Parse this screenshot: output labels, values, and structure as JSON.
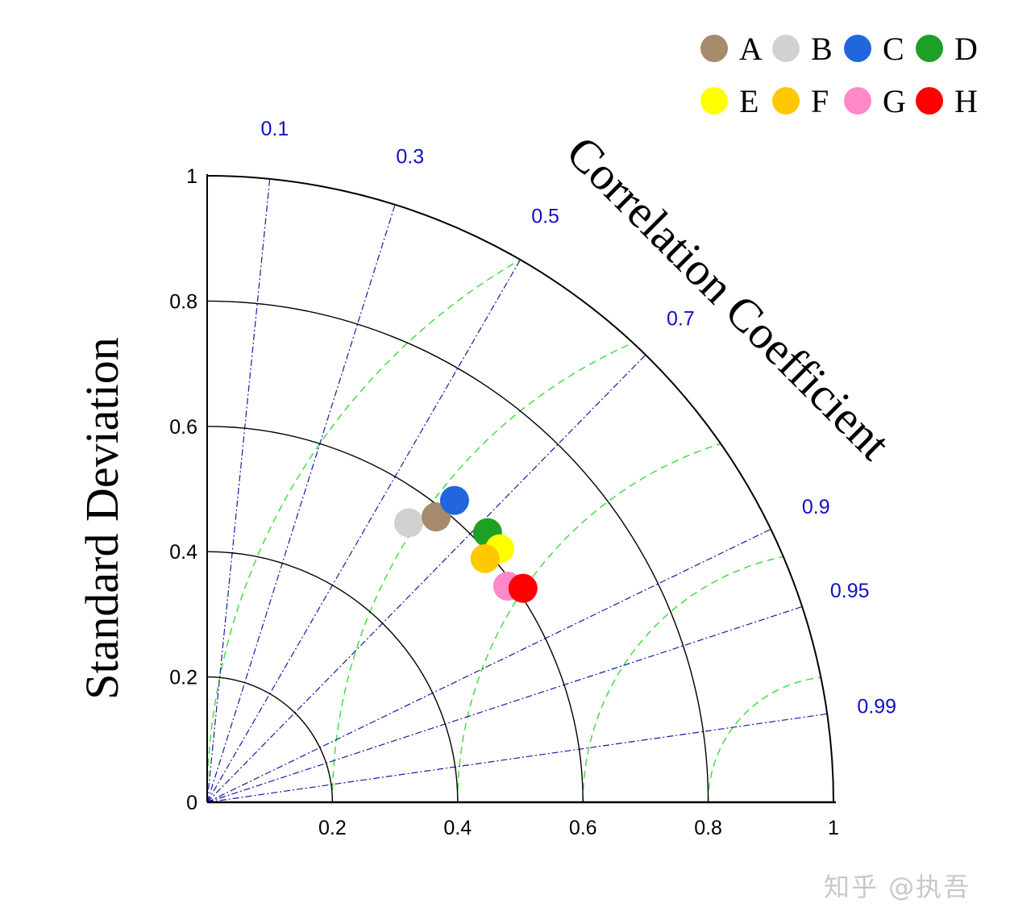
{
  "chart_data": {
    "type": "taylor-diagram",
    "title": "",
    "xlabel": "",
    "ylabel": "Standard Deviation",
    "arc_label": "Correlation Coefficient",
    "std_range": [
      0,
      1
    ],
    "std_ticks": [
      0,
      0.2,
      0.4,
      0.6,
      0.8,
      1
    ],
    "std_tick_labels_y": [
      "0",
      "0.2",
      "0.4",
      "0.6",
      "0.8",
      "1"
    ],
    "std_tick_labels_x": [
      "0.2",
      "0.4",
      "0.6",
      "0.8",
      "1"
    ],
    "correlation_ticks": [
      0.1,
      0.3,
      0.5,
      0.7,
      0.9,
      0.95,
      0.99
    ],
    "correlation_tick_labels": [
      "0.1",
      "0.3",
      "0.5",
      "0.7",
      "0.9",
      "0.95",
      "0.99"
    ],
    "rms_contours": [
      0.2,
      0.4,
      0.6,
      0.8,
      1.0
    ],
    "reference_std": 1.0,
    "legend_position": "top-right",
    "series": [
      {
        "name": "A",
        "color": "#a58a6b",
        "std": 0.584,
        "correlation": 0.626
      },
      {
        "name": "B",
        "color": "#d3d0d0",
        "std": 0.55,
        "correlation": 0.585
      },
      {
        "name": "C",
        "color": "#2266dd",
        "std": 0.623,
        "correlation": 0.634
      },
      {
        "name": "D",
        "color": "#1ea024",
        "std": 0.621,
        "correlation": 0.721
      },
      {
        "name": "E",
        "color": "#ffff00",
        "std": 0.618,
        "correlation": 0.756
      },
      {
        "name": "F",
        "color": "#ffc800",
        "std": 0.59,
        "correlation": 0.752
      },
      {
        "name": "G",
        "color": "#ff88c8",
        "std": 0.591,
        "correlation": 0.812
      },
      {
        "name": "H",
        "color": "#ff0000",
        "std": 0.609,
        "correlation": 0.828
      }
    ]
  },
  "colors": {
    "grid_std": "#000000",
    "grid_corr": "#1a1aa0",
    "grid_rms": "#44dd44",
    "corr_labels": "#1010c0"
  },
  "watermark": "知乎 @执吾"
}
